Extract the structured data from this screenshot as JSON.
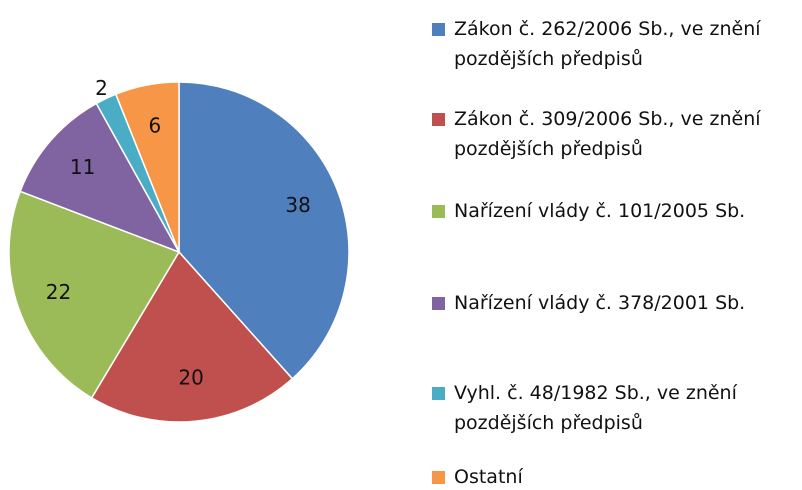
{
  "chart_data": {
    "type": "pie",
    "categories": [
      "Zákon č. 262/2006 Sb., ve znění pozdějších předpisů",
      "Zákon č. 309/2006 Sb., ve znění pozdějších předpisů",
      "Nařízení vlády č. 101/2005 Sb.",
      "Nařízení vlády č. 378/2001 Sb.",
      "Vyhl. č. 48/1982 Sb., ve znění pozdějších předpisů",
      "Ostatní"
    ],
    "values": [
      38,
      20,
      22,
      11,
      2,
      6
    ],
    "colors": [
      "#4f7fbc",
      "#c0504d",
      "#9bbb59",
      "#8064a2",
      "#4bacc6",
      "#f79646"
    ],
    "legend": "right"
  }
}
